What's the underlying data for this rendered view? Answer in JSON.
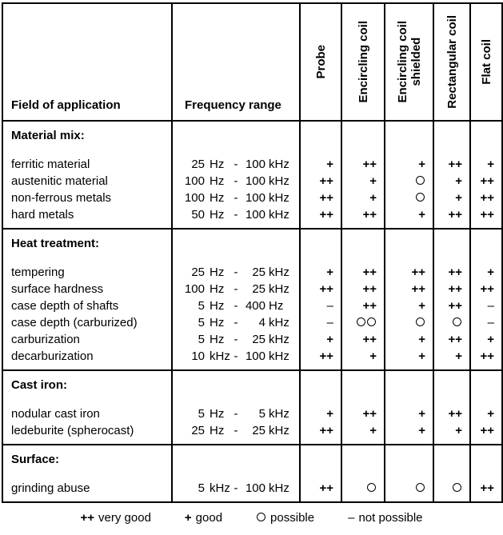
{
  "table": {
    "headers": {
      "col1": "Field of application",
      "col2": "Frequency range",
      "probes": [
        "Probe",
        "Encircling coil",
        "Encircling coil\nshielded",
        "Rectangular coil",
        "Flat coil"
      ]
    },
    "sections": [
      {
        "title": "Material mix:",
        "rows": [
          {
            "label": "ferritic material",
            "freq": {
              "v1": "25",
              "u1": "Hz",
              "v2": "100",
              "u2": "kHz"
            },
            "ratings": [
              "+",
              "++",
              "+",
              "++",
              "+"
            ]
          },
          {
            "label": "austenitic material",
            "freq": {
              "v1": "100",
              "u1": "Hz",
              "v2": "100",
              "u2": "kHz"
            },
            "ratings": [
              "++",
              "+",
              "o",
              "+",
              "++"
            ]
          },
          {
            "label": "non-ferrous metals",
            "freq": {
              "v1": "100",
              "u1": "Hz",
              "v2": "100",
              "u2": "kHz"
            },
            "ratings": [
              "++",
              "+",
              "o",
              "+",
              "++"
            ]
          },
          {
            "label": "hard metals",
            "freq": {
              "v1": "50",
              "u1": "Hz",
              "v2": "100",
              "u2": "kHz"
            },
            "ratings": [
              "++",
              "++",
              "+",
              "++",
              "++"
            ]
          }
        ]
      },
      {
        "title": "Heat treatment:",
        "rows": [
          {
            "label": "tempering",
            "freq": {
              "v1": "25",
              "u1": "Hz",
              "v2": "25",
              "u2": "kHz"
            },
            "ratings": [
              "+",
              "++",
              "++",
              "++",
              "+"
            ]
          },
          {
            "label": "surface hardness",
            "freq": {
              "v1": "100",
              "u1": "Hz",
              "v2": "25",
              "u2": "kHz"
            },
            "ratings": [
              "++",
              "++",
              "++",
              "++",
              "++"
            ]
          },
          {
            "label": "case depth of shafts",
            "freq": {
              "v1": "5",
              "u1": "Hz",
              "v2": "400",
              "u2": "Hz"
            },
            "ratings": [
              "-",
              "++",
              "+",
              "++",
              "-"
            ]
          },
          {
            "label": "case depth (carburized)",
            "freq": {
              "v1": "5",
              "u1": "Hz",
              "v2": "4",
              "u2": "kHz"
            },
            "ratings": [
              "-",
              "oo",
              "o",
              "o",
              "-"
            ]
          },
          {
            "label": "carburization",
            "freq": {
              "v1": "5",
              "u1": "Hz",
              "v2": "25",
              "u2": "kHz"
            },
            "ratings": [
              "+",
              "++",
              "+",
              "++",
              "+"
            ]
          },
          {
            "label": "decarburization",
            "freq": {
              "v1": "10",
              "u1": "kHz",
              "v2": "100",
              "u2": "kHz"
            },
            "ratings": [
              "++",
              "+",
              "+",
              "+",
              "++"
            ]
          }
        ]
      },
      {
        "title": "Cast iron:",
        "rows": [
          {
            "label": "nodular cast iron",
            "freq": {
              "v1": "5",
              "u1": "Hz",
              "v2": "5",
              "u2": "kHz"
            },
            "ratings": [
              "+",
              "++",
              "+",
              "++",
              "+"
            ]
          },
          {
            "label": "ledeburite (spherocast)",
            "freq": {
              "v1": "25",
              "u1": "Hz",
              "v2": "25",
              "u2": "kHz"
            },
            "ratings": [
              "++",
              "+",
              "+",
              "+",
              "++"
            ]
          }
        ]
      },
      {
        "title": "Surface:",
        "rows": [
          {
            "label": "grinding abuse",
            "freq": {
              "v1": "5",
              "u1": "kHz",
              "v2": "100",
              "u2": "kHz"
            },
            "ratings": [
              "++",
              "o",
              "o",
              "o",
              "++"
            ]
          }
        ]
      }
    ],
    "legend": [
      {
        "symbol": "++",
        "label": "very good"
      },
      {
        "symbol": "+",
        "label": "good"
      },
      {
        "symbol": "o",
        "label": "possible"
      },
      {
        "symbol": "-",
        "label": "not possible"
      }
    ],
    "colors": {
      "ink": "#000000",
      "paper": "#ffffff"
    }
  }
}
